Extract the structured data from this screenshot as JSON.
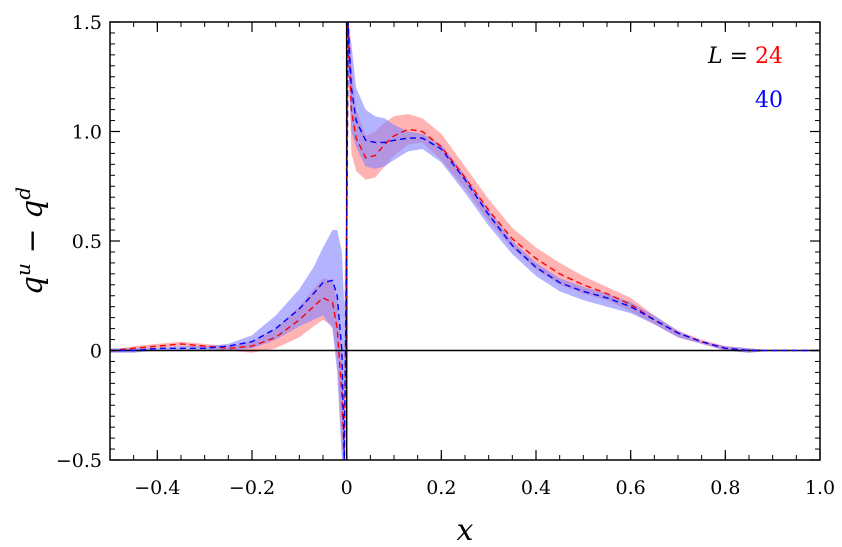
{
  "chart_data": {
    "type": "area",
    "xlabel": "x",
    "ylabel_base": "q",
    "ylabel_sup1": "u",
    "ylabel_minus": " − ",
    "ylabel_sup2": "d",
    "xlim": [
      -0.5,
      1.0
    ],
    "ylim": [
      -0.5,
      1.5
    ],
    "xticks": [
      -0.4,
      -0.2,
      0,
      0.2,
      0.4,
      0.6,
      0.8,
      1.0
    ],
    "xtick_labels": [
      "−0.4",
      "−0.2",
      "0",
      "0.2",
      "0.4",
      "0.6",
      "0.8",
      "1.0"
    ],
    "yticks": [
      -0.5,
      0,
      0.5,
      1.0,
      1.5
    ],
    "ytick_labels": [
      "−0.5",
      "0",
      "0.5",
      "1.0",
      "1.5"
    ],
    "legend_prefix": "L = ",
    "legend_placement": "top-right",
    "series": [
      {
        "name": "24",
        "color": "#ff0000",
        "band_color": "#ff8080",
        "x": [
          -0.5,
          -0.45,
          -0.4,
          -0.35,
          -0.3,
          -0.25,
          -0.2,
          -0.15,
          -0.1,
          -0.07,
          -0.05,
          -0.03,
          -0.02,
          -0.01,
          -0.005,
          0.0,
          0.003,
          0.01,
          0.02,
          0.04,
          0.06,
          0.08,
          0.1,
          0.13,
          0.16,
          0.2,
          0.25,
          0.3,
          0.35,
          0.4,
          0.45,
          0.5,
          0.55,
          0.6,
          0.65,
          0.7,
          0.75,
          0.8,
          0.85,
          0.9,
          0.95,
          1.0
        ],
        "central": [
          0.0,
          0.01,
          0.02,
          0.03,
          0.02,
          0.01,
          0.02,
          0.06,
          0.14,
          0.2,
          0.24,
          0.22,
          0.1,
          -0.2,
          -0.5,
          0.5,
          1.5,
          1.1,
          0.97,
          0.88,
          0.89,
          0.94,
          0.98,
          1.01,
          1.0,
          0.93,
          0.79,
          0.64,
          0.51,
          0.42,
          0.35,
          0.3,
          0.26,
          0.21,
          0.14,
          0.08,
          0.04,
          0.01,
          0.0,
          0.0,
          0.0,
          0.0
        ],
        "upper": [
          0.0,
          0.02,
          0.03,
          0.04,
          0.03,
          0.02,
          0.04,
          0.1,
          0.2,
          0.28,
          0.33,
          0.32,
          0.22,
          0.0,
          -0.3,
          0.7,
          1.5,
          1.3,
          1.1,
          0.98,
          1.0,
          1.04,
          1.07,
          1.08,
          1.06,
          0.99,
          0.84,
          0.69,
          0.56,
          0.47,
          0.4,
          0.34,
          0.29,
          0.24,
          0.16,
          0.09,
          0.05,
          0.02,
          0.01,
          0.0,
          0.0,
          0.0
        ],
        "lower": [
          -0.01,
          0.0,
          0.01,
          0.02,
          0.01,
          0.0,
          -0.01,
          0.01,
          0.06,
          0.11,
          0.14,
          0.11,
          -0.05,
          -0.45,
          -0.5,
          0.3,
          1.4,
          0.9,
          0.82,
          0.78,
          0.79,
          0.84,
          0.89,
          0.94,
          0.95,
          0.87,
          0.74,
          0.59,
          0.47,
          0.37,
          0.3,
          0.26,
          0.23,
          0.18,
          0.12,
          0.06,
          0.03,
          0.0,
          -0.01,
          0.0,
          0.0,
          0.0
        ]
      },
      {
        "name": "40",
        "color": "#0000ff",
        "band_color": "#8080ff",
        "x": [
          -0.5,
          -0.45,
          -0.4,
          -0.35,
          -0.3,
          -0.25,
          -0.2,
          -0.15,
          -0.1,
          -0.07,
          -0.05,
          -0.03,
          -0.02,
          -0.01,
          -0.005,
          0.0,
          0.003,
          0.01,
          0.02,
          0.04,
          0.06,
          0.08,
          0.1,
          0.13,
          0.16,
          0.2,
          0.25,
          0.3,
          0.35,
          0.4,
          0.45,
          0.5,
          0.55,
          0.6,
          0.65,
          0.7,
          0.75,
          0.8,
          0.85,
          0.9,
          0.95,
          1.0
        ],
        "central": [
          0.0,
          0.0,
          0.01,
          0.01,
          0.01,
          0.02,
          0.04,
          0.1,
          0.19,
          0.26,
          0.31,
          0.32,
          0.25,
          0.0,
          -0.5,
          0.5,
          1.5,
          1.2,
          1.05,
          0.96,
          0.95,
          0.95,
          0.96,
          0.97,
          0.97,
          0.92,
          0.78,
          0.62,
          0.48,
          0.38,
          0.31,
          0.27,
          0.24,
          0.2,
          0.14,
          0.08,
          0.04,
          0.01,
          0.0,
          0.0,
          0.0,
          0.0
        ],
        "upper": [
          0.01,
          0.01,
          0.01,
          0.02,
          0.02,
          0.03,
          0.07,
          0.16,
          0.28,
          0.38,
          0.47,
          0.55,
          0.55,
          0.45,
          0.2,
          0.8,
          1.5,
          1.4,
          1.2,
          1.1,
          1.07,
          1.06,
          1.03,
          1.0,
          0.99,
          0.94,
          0.8,
          0.64,
          0.5,
          0.4,
          0.33,
          0.29,
          0.26,
          0.22,
          0.16,
          0.09,
          0.04,
          0.02,
          0.01,
          0.0,
          0.0,
          0.0
        ],
        "lower": [
          -0.01,
          -0.01,
          0.0,
          0.0,
          0.0,
          0.0,
          0.01,
          0.05,
          0.11,
          0.14,
          0.16,
          0.1,
          -0.1,
          -0.5,
          -0.5,
          0.2,
          1.3,
          1.0,
          0.93,
          0.84,
          0.83,
          0.84,
          0.87,
          0.91,
          0.92,
          0.86,
          0.72,
          0.57,
          0.44,
          0.34,
          0.27,
          0.23,
          0.2,
          0.17,
          0.12,
          0.06,
          0.03,
          0.0,
          -0.01,
          0.0,
          0.0,
          0.0
        ]
      }
    ]
  }
}
